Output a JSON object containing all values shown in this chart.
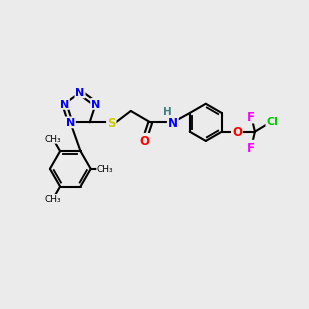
{
  "smiles": "O=C(CSc1nnnn1-c1c(C)cc(C)cc1C)Nc1ccc(OC(F)(F)Cl)cc1",
  "background_color": "#ebebeb",
  "figsize": [
    3.0,
    3.0
  ],
  "dpi": 100,
  "atom_colors": {
    "N": "#0000ff",
    "S": "#cccc00",
    "O": "#ff0000",
    "F": "#ff00ff",
    "Cl": "#00cc00",
    "H": "#408080"
  }
}
